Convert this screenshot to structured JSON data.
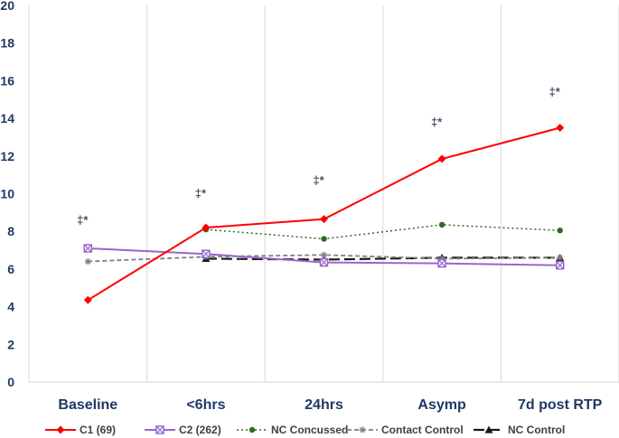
{
  "chart_data": {
    "type": "line",
    "title": "",
    "xlabel": "",
    "ylabel": "",
    "categories": [
      "Baseline",
      "<6hrs",
      "24hrs",
      "Asymp",
      "7d post RTP"
    ],
    "ylim": [
      0,
      20
    ],
    "yticks": [
      0,
      2,
      4,
      6,
      8,
      10,
      12,
      14,
      16,
      18,
      20
    ],
    "grid": "vertical",
    "legend": "bottom",
    "series": [
      {
        "name": "C1 (69)",
        "values": [
          4.35,
          8.2,
          8.65,
          11.85,
          13.5
        ],
        "color": "#ff0000",
        "marker": "diamond",
        "dash": "solid"
      },
      {
        "name": "C2 (262)",
        "values": [
          7.1,
          6.8,
          6.35,
          6.3,
          6.2
        ],
        "color": "#9966cc",
        "marker": "square-x",
        "dash": "solid"
      },
      {
        "name": "NC Concussed",
        "values": [
          null,
          8.1,
          7.6,
          8.35,
          8.05
        ],
        "color": "#2e6b1e",
        "marker": "circle",
        "dash": "dotted"
      },
      {
        "name": "Contact Control",
        "values": [
          6.4,
          6.65,
          6.75,
          6.55,
          6.6
        ],
        "color": "#808080",
        "marker": "star",
        "dash": "dashed"
      },
      {
        "name": "NC Control",
        "values": [
          null,
          6.55,
          6.5,
          6.6,
          6.6
        ],
        "color": "#1a1a1a",
        "marker": "triangle",
        "dash": "longdash"
      }
    ],
    "annotations": [
      {
        "category": "Baseline",
        "y": 8.4,
        "text": "‡*"
      },
      {
        "category": "<6hrs",
        "y": 9.8,
        "text": "‡*"
      },
      {
        "category": "24hrs",
        "y": 10.5,
        "text": "‡*"
      },
      {
        "category": "Asymp",
        "y": 13.6,
        "text": "‡*"
      },
      {
        "category": "7d post RTP",
        "y": 15.2,
        "text": "‡*"
      }
    ]
  }
}
